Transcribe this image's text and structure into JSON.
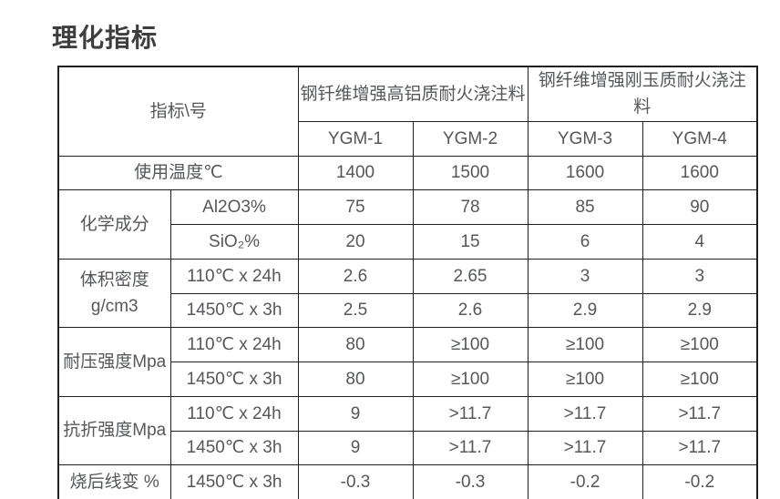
{
  "title": "理化指标",
  "table": {
    "corner": "指标\\号",
    "groups": [
      "钢钎维增强高铝质耐火浇注料",
      "钢纤维增强刚玉质耐火浇注料"
    ],
    "models": [
      "YGM-1",
      "YGM-2",
      "YGM-3",
      "YGM-4"
    ],
    "rows": [
      {
        "label": "使用温度℃",
        "values": [
          "1400",
          "1500",
          "1600",
          "1600"
        ]
      },
      {
        "label": "化学成分",
        "sub": "Al2O3%",
        "values": [
          "75",
          "78",
          "85",
          "90"
        ]
      },
      {
        "sub": "SiO₂%",
        "values": [
          "20",
          "15",
          "6",
          "4"
        ]
      },
      {
        "label": "体积密度\ng/cm3",
        "sub": "110℃ x 24h",
        "values": [
          "2.6",
          "2.65",
          "3",
          "3"
        ]
      },
      {
        "sub": "1450℃ x 3h",
        "values": [
          "2.5",
          "2.6",
          "2.9",
          "2.9"
        ]
      },
      {
        "label": "耐压强度Mpa",
        "sub": "110℃ x 24h",
        "values": [
          "80",
          "≥100",
          "≥100",
          "≥100"
        ]
      },
      {
        "sub": "1450℃ x 3h",
        "values": [
          "80",
          "≥100",
          "≥100",
          "≥100"
        ]
      },
      {
        "label": "抗折强度Mpa",
        "sub": "110℃ x 24h",
        "values": [
          "9",
          ">11.7",
          ">11.7",
          ">11.7"
        ]
      },
      {
        "sub": "1450℃ x 3h",
        "values": [
          "9",
          ">11.7",
          ">11.7",
          ">11.7"
        ]
      },
      {
        "label": "烧后线变 %",
        "sub": "1450℃ x 3h",
        "values": [
          "-0.3",
          "-0.3",
          "-0.2",
          "-0.2"
        ]
      }
    ],
    "colors": {
      "title_text": "#3e3e3e",
      "cell_text": "#55575a",
      "border": "#1f1f1f",
      "background": "#ffffff"
    }
  }
}
